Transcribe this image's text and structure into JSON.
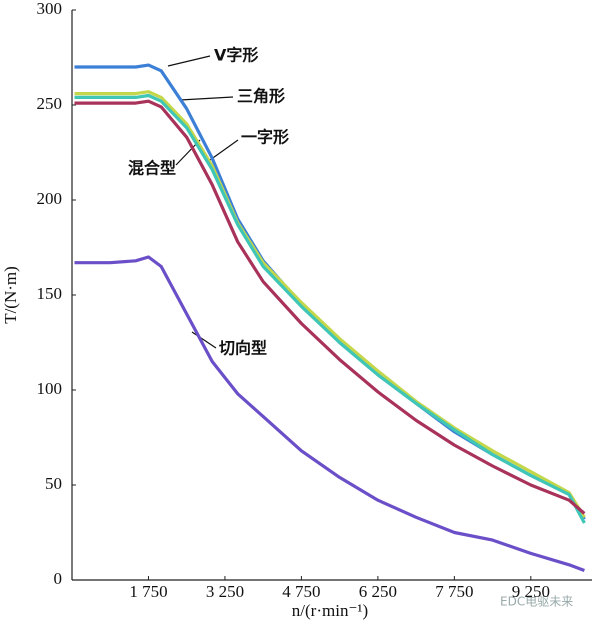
{
  "chart_data": {
    "type": "line",
    "y_label": "T/(N·m)",
    "x_label": "n/(r·min⁻¹)",
    "watermark": "EDC电驱未来",
    "x": [
      300,
      1000,
      1500,
      1750,
      2000,
      2500,
      3000,
      3500,
      4000,
      4750,
      5500,
      6250,
      7000,
      7750,
      8500,
      9250,
      10000,
      10300
    ],
    "series": [
      {
        "name": "V字形",
        "color": "#3b7fd6",
        "values": [
          270,
          270,
          270,
          271,
          268,
          248,
          222,
          190,
          168,
          145,
          125,
          108,
          93,
          78,
          66,
          55,
          45,
          32
        ]
      },
      {
        "name": "三角形",
        "color": "#c4d64a",
        "values": [
          256,
          256,
          256,
          257,
          254,
          240,
          218,
          188,
          167,
          146,
          127,
          110,
          94,
          80,
          68,
          57,
          46,
          33
        ]
      },
      {
        "name": "一字形",
        "color": "#3fc6b6",
        "values": [
          254,
          254,
          254,
          255,
          252,
          238,
          216,
          187,
          165,
          144,
          125,
          108,
          93,
          79,
          66,
          55,
          45,
          30
        ]
      },
      {
        "name": "混合型",
        "color": "#a8325a",
        "values": [
          251,
          251,
          251,
          252,
          249,
          233,
          208,
          178,
          157,
          135,
          116,
          99,
          84,
          71,
          60,
          50,
          42,
          35
        ]
      },
      {
        "name": "切向型",
        "color": "#6a4fc8",
        "values": [
          167,
          167,
          168,
          170,
          165,
          140,
          115,
          98,
          86,
          68,
          54,
          42,
          33,
          25,
          21,
          14,
          8,
          5
        ]
      }
    ],
    "xlim": [
      250,
      10450
    ],
    "xticks": [
      {
        "value": 1750,
        "label": "1 750"
      },
      {
        "value": 3250,
        "label": "3 250"
      },
      {
        "value": 4750,
        "label": "4 750"
      },
      {
        "value": 6250,
        "label": "6 250"
      },
      {
        "value": 7750,
        "label": "7 750"
      },
      {
        "value": 9250,
        "label": "9 250"
      }
    ],
    "ylim": [
      0,
      300
    ],
    "yticks": [
      0,
      50,
      100,
      150,
      200,
      250,
      300
    ],
    "grid": false
  }
}
